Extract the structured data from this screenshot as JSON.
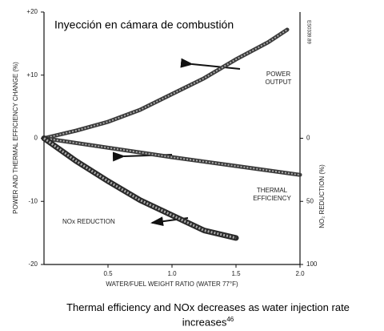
{
  "chart_data": {
    "type": "line",
    "title": "Inyección en cámara de combustión",
    "xlabel": "WATER/FUEL WEIGHT RATIO (WATER 77°F)",
    "ylabel": "POWER AND THERMAL EFFICIENCY CHANGE (%)",
    "y2label": "NO₂ REDUCTION (%)",
    "figure_code": "ES0339.89",
    "caption": "Thermal efficiency and NOx decreases as water injection rate increases",
    "footnote": "46",
    "xlim": [
      0,
      2
    ],
    "xticks": [
      0.5,
      {
        "value": 1,
        "label": "1.0"
      },
      1.5,
      {
        "value": 2,
        "label": "2.0"
      }
    ],
    "ylim": [
      -20,
      20
    ],
    "yticks": [
      {
        "value": 20,
        "label": "+20"
      },
      {
        "value": 10,
        "label": "+10"
      },
      0,
      -10,
      -20
    ],
    "y2lim": [
      100,
      -100
    ],
    "y2ticks": [
      0,
      50,
      100
    ],
    "series": [
      {
        "name": "POWER OUTPUT",
        "color": "#3a3a3a",
        "x": [
          0,
          0.25,
          0.5,
          0.75,
          1,
          1.25,
          1.5,
          1.75,
          1.9
        ],
        "values": [
          0,
          1.2,
          2.6,
          4.5,
          7,
          9.5,
          12.5,
          15.2,
          17.2
        ]
      },
      {
        "name": "THERMAL EFFICIENCY",
        "color": "#3a3a3a",
        "x": [
          0,
          0.5,
          1,
          1.5,
          2
        ],
        "values": [
          0,
          -1.5,
          -3,
          -4.4,
          -5.8
        ]
      },
      {
        "name": "NOx REDUCTION",
        "color": "#2a2a2a",
        "axis": "y2",
        "x": [
          0,
          0.25,
          0.5,
          0.75,
          1,
          1.25,
          1.5
        ],
        "values": [
          0,
          18,
          34,
          49,
          61,
          73,
          79
        ]
      }
    ]
  }
}
